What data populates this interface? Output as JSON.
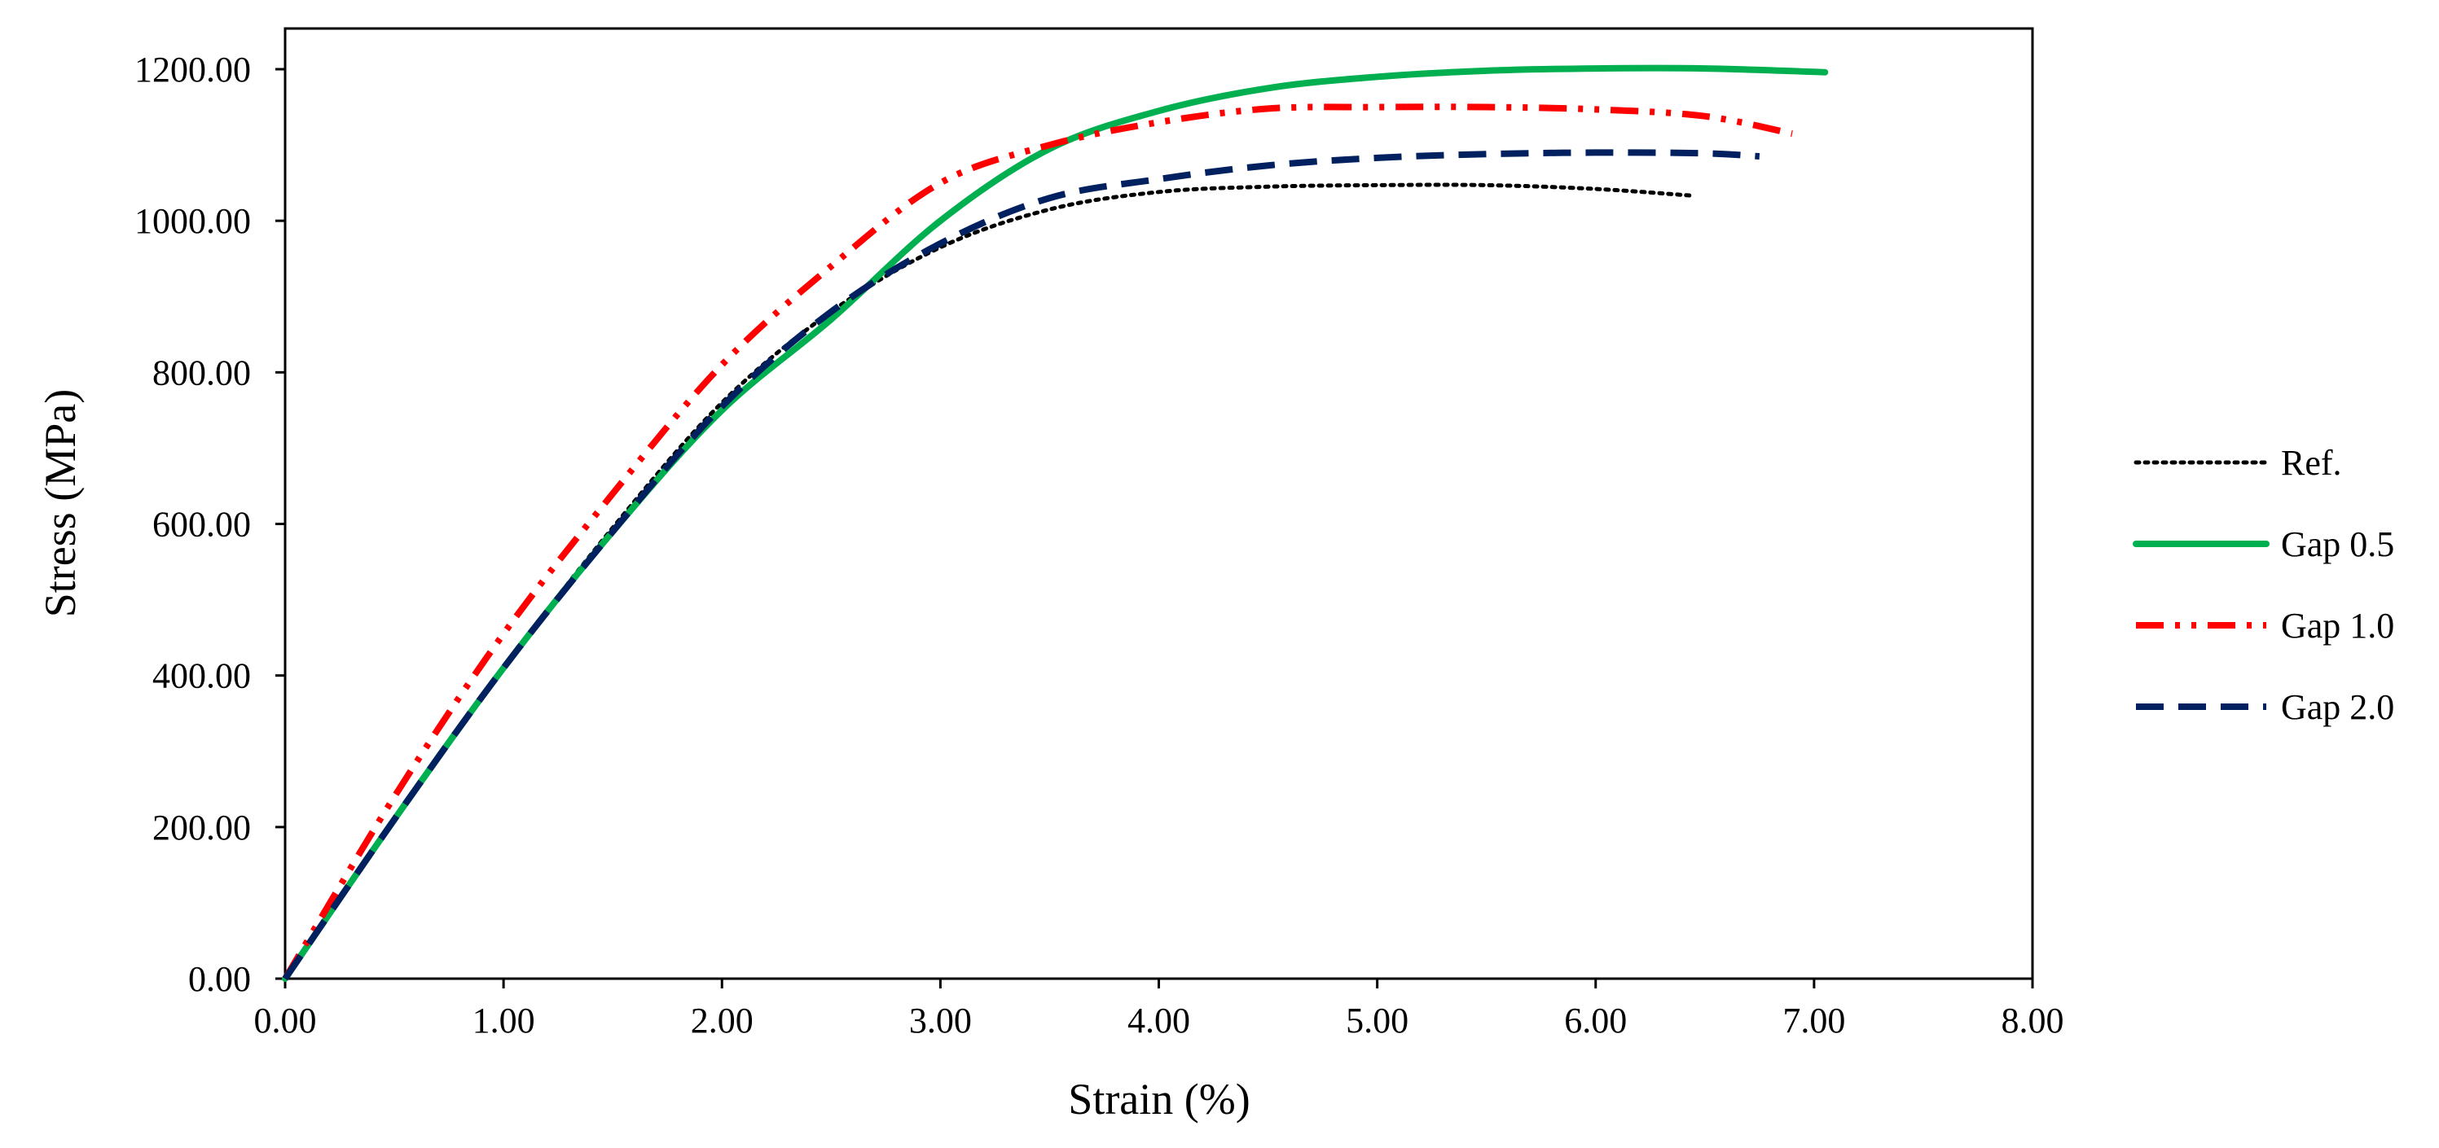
{
  "chart_data": {
    "type": "line",
    "title": "",
    "xlabel": "Strain (%)",
    "ylabel": "Stress (MPa)",
    "xlim": [
      0,
      8
    ],
    "ylim": [
      0,
      1250
    ],
    "x_ticks": [
      0,
      1,
      2,
      3,
      4,
      5,
      6,
      7,
      8
    ],
    "x_tick_labels": [
      "0.00",
      "1.00",
      "2.00",
      "3.00",
      "4.00",
      "5.00",
      "6.00",
      "7.00",
      "8.00"
    ],
    "y_ticks": [
      0,
      200,
      400,
      600,
      800,
      1000,
      1200
    ],
    "y_tick_labels": [
      "0.00",
      "200.00",
      "400.00",
      "600.00",
      "800.00",
      "1000.00",
      "1200.00"
    ],
    "grid": false,
    "legend_position": "right",
    "series": [
      {
        "name": "Ref.",
        "color": "#000000",
        "style": "dotted",
        "x": [
          0,
          0.5,
          1.0,
          1.5,
          2.0,
          2.5,
          3.0,
          3.5,
          4.0,
          4.5,
          5.0,
          5.5,
          6.0,
          6.45
        ],
        "y": [
          0,
          210,
          410,
          595,
          760,
          880,
          965,
          1015,
          1038,
          1045,
          1047,
          1047,
          1042,
          1033
        ]
      },
      {
        "name": "Gap 0.5",
        "color": "#00B050",
        "style": "solid",
        "x": [
          0,
          0.5,
          1.0,
          1.5,
          2.0,
          2.5,
          3.0,
          3.5,
          4.0,
          4.5,
          5.0,
          5.5,
          6.0,
          6.5,
          7.05
        ],
        "y": [
          0,
          210,
          410,
          590,
          750,
          870,
          1000,
          1095,
          1145,
          1175,
          1190,
          1198,
          1201,
          1201,
          1196
        ]
      },
      {
        "name": "Gap 1.0",
        "color": "#FF0000",
        "style": "dash-dot-dot",
        "x": [
          0,
          0.5,
          1.0,
          1.5,
          2.0,
          2.5,
          3.0,
          3.5,
          4.0,
          4.5,
          5.0,
          5.5,
          6.0,
          6.5,
          6.9
        ],
        "y": [
          0,
          240,
          455,
          640,
          810,
          940,
          1050,
          1100,
          1130,
          1148,
          1150,
          1150,
          1147,
          1138,
          1115
        ]
      },
      {
        "name": "Gap 2.0",
        "color": "#002060",
        "style": "dashed",
        "x": [
          0,
          0.5,
          1.0,
          1.5,
          2.0,
          2.5,
          3.0,
          3.5,
          4.0,
          4.5,
          5.0,
          5.5,
          6.0,
          6.5,
          6.75
        ],
        "y": [
          0,
          210,
          410,
          590,
          755,
          880,
          970,
          1030,
          1055,
          1073,
          1083,
          1088,
          1090,
          1089,
          1085
        ]
      }
    ]
  }
}
